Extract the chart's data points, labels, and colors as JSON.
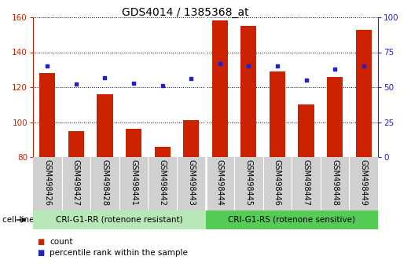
{
  "title": "GDS4014 / 1385368_at",
  "samples": [
    "GSM498426",
    "GSM498427",
    "GSM498428",
    "GSM498441",
    "GSM498442",
    "GSM498443",
    "GSM498444",
    "GSM498445",
    "GSM498446",
    "GSM498447",
    "GSM498448",
    "GSM498449"
  ],
  "count_values": [
    128,
    95,
    116,
    96,
    86,
    101,
    158,
    155,
    129,
    110,
    126,
    153
  ],
  "percentile_values": [
    65,
    52,
    57,
    53,
    51,
    56,
    67,
    65,
    65,
    55,
    63,
    65
  ],
  "ylim_left": [
    80,
    160
  ],
  "ylim_right": [
    0,
    100
  ],
  "yticks_left": [
    80,
    100,
    120,
    140,
    160
  ],
  "yticks_right": [
    0,
    25,
    50,
    75,
    100
  ],
  "group1_label": "CRI-G1-RR (rotenone resistant)",
  "group2_label": "CRI-G1-RS (rotenone sensitive)",
  "group1_count": 6,
  "group2_count": 6,
  "bar_color": "#cc2200",
  "dot_color": "#2222cc",
  "group1_bg": "#b8e8b8",
  "group2_bg": "#55cc55",
  "xlabel_area_bg": "#d0d0d0",
  "legend_count_label": "count",
  "legend_pct_label": "percentile rank within the sample",
  "cell_line_label": "cell line",
  "title_fontsize": 10,
  "tick_fontsize": 7.5,
  "label_fontsize": 7,
  "group_fontsize": 7.5
}
